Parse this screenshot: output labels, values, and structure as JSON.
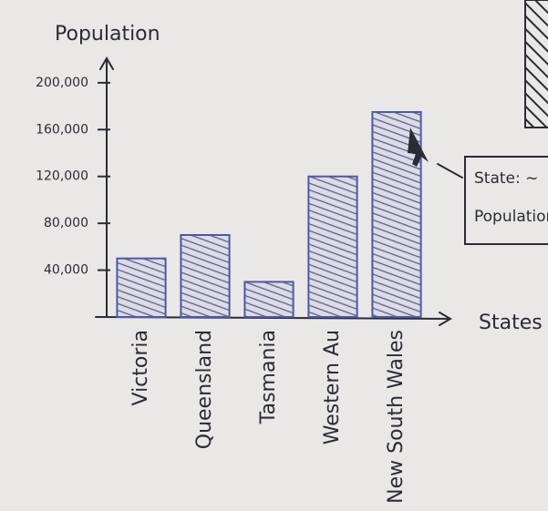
{
  "chart_data": {
    "type": "bar",
    "title": "Population",
    "x_label": "States",
    "categories": [
      "Victoria",
      "Queensland",
      "Tasmania",
      "Western Au",
      "New South Wales"
    ],
    "values": [
      50000,
      70000,
      30000,
      120000,
      175000
    ],
    "color": "#4a5aa8",
    "ylim": [
      0,
      210000
    ],
    "yticks": [
      {
        "value": 40000,
        "label": "40,000"
      },
      {
        "value": 80000,
        "label": "80,000"
      },
      {
        "value": 120000,
        "label": "120,000"
      },
      {
        "value": 160000,
        "label": "160,000"
      },
      {
        "value": 200000,
        "label": "200,000"
      }
    ],
    "tooltip_lines": [
      "State: ~",
      "Population"
    ]
  }
}
